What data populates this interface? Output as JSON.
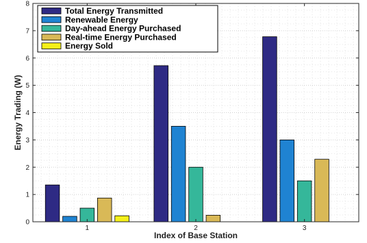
{
  "chart_data": {
    "type": "bar",
    "categories": [
      "1",
      "2",
      "3"
    ],
    "series": [
      {
        "name": "Total Energy Transmitted",
        "values": [
          1.35,
          5.72,
          6.78
        ],
        "color": "#2e2a84"
      },
      {
        "name": "Renewable Energy",
        "values": [
          0.2,
          3.5,
          3.0
        ],
        "color": "#1f83d2"
      },
      {
        "name": "Day-ahead Energy Purchased",
        "values": [
          0.5,
          2.0,
          1.5
        ],
        "color": "#35b79a"
      },
      {
        "name": "Real-time Energy Purchased",
        "values": [
          0.87,
          0.24,
          2.29
        ],
        "color": "#d9b957"
      },
      {
        "name": "Energy Sold",
        "values": [
          0.22,
          0.0,
          0.0
        ],
        "color": "#f5f01a"
      }
    ],
    "xlabel": "Index of Base Station",
    "ylabel": "Energy Trading (W)",
    "ylim": [
      0,
      8
    ],
    "yticks": [
      "0",
      "1",
      "2",
      "3",
      "4",
      "5",
      "6",
      "7",
      "8"
    ],
    "grid": "on",
    "legend_position": "top-left"
  }
}
